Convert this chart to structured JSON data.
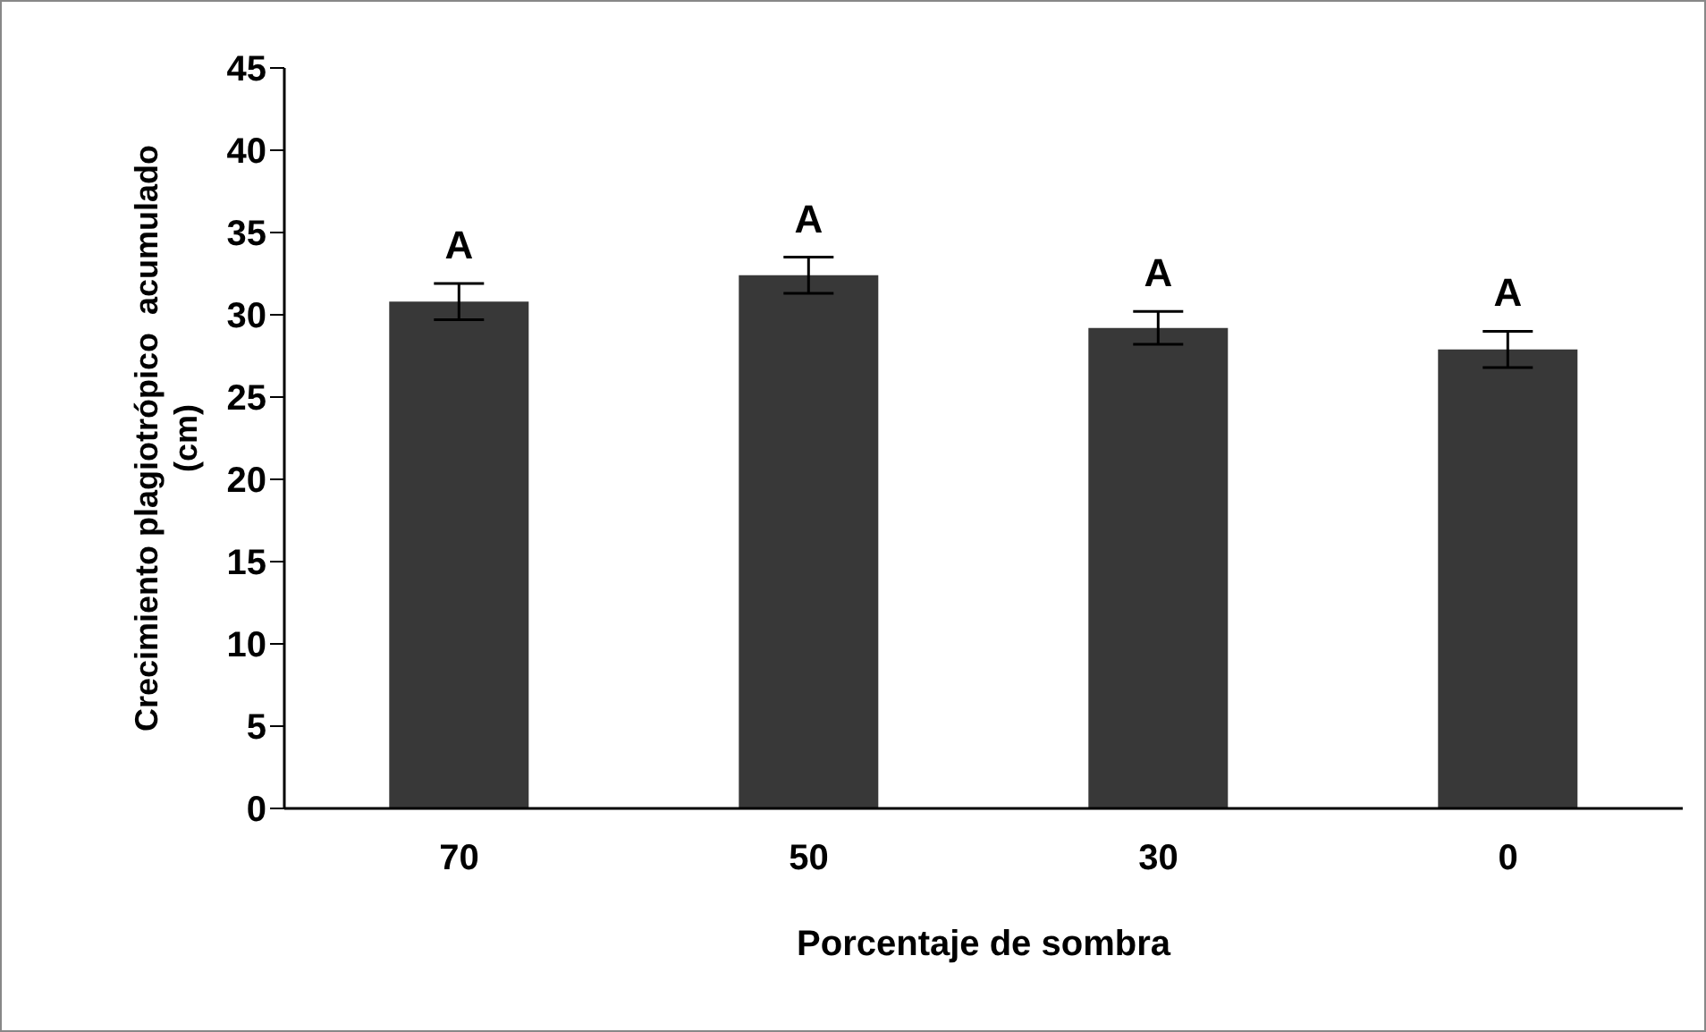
{
  "chart_data": {
    "type": "bar",
    "xlabel": "Porcentaje de sombra",
    "ylabel": "Crecimiento plagiotrópico  acumulado (cm)",
    "categories": [
      "70",
      "50",
      "30",
      "0"
    ],
    "values": [
      30.8,
      32.4,
      29.2,
      27.9
    ],
    "errors": [
      1.1,
      1.1,
      1.0,
      1.1
    ],
    "color": "#383838",
    "ylim": [
      0,
      45
    ],
    "yticks": [
      0,
      5,
      10,
      15,
      20,
      25,
      30,
      35,
      40,
      45
    ],
    "grid": false,
    "legend": false,
    "annotations": [
      "A",
      "A",
      "A",
      "A"
    ]
  }
}
